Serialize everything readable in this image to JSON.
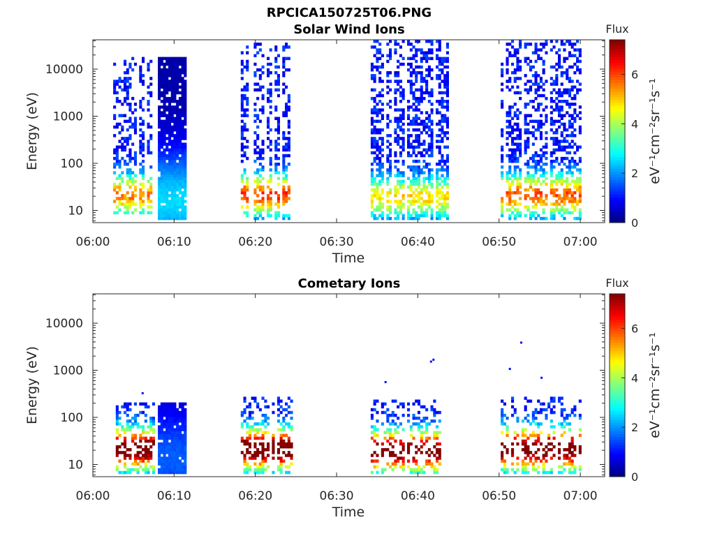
{
  "figure_title": "RPCICA150725T06.PNG",
  "colorbar": {
    "title": "Flux",
    "label": "eV⁻¹cm⁻²sr⁻¹s⁻¹",
    "range": [
      0,
      7.4
    ],
    "ticks": [
      0,
      2,
      4,
      6
    ],
    "colormap": "jet"
  },
  "chart_data": [
    {
      "type": "heatmap",
      "title": "Solar Wind Ions",
      "xlabel": "Time",
      "ylabel": "Energy (eV)",
      "yscale": "log",
      "xlim": [
        "06:00",
        "07:03"
      ],
      "ylim": [
        5.5,
        42000
      ],
      "xticks": [
        "06:00",
        "06:10",
        "06:20",
        "06:30",
        "06:40",
        "06:50",
        "07:00"
      ],
      "yticks": [
        "10",
        "100",
        "1000",
        "10000"
      ],
      "bursts": [
        {
          "start": "06:02.5",
          "end": "06:07.3",
          "emin": 8,
          "emax": 18000,
          "peak_energy": 20,
          "peak_flux": 4.5,
          "density": 0.6
        },
        {
          "start": "06:08.0",
          "end": "06:11.3",
          "emin": 6,
          "emax": 18000,
          "peak_energy": 15,
          "peak_flux": 2.2,
          "density": 0.9,
          "solid": true
        },
        {
          "start": "06:18.2",
          "end": "06:24.5",
          "emin": 6,
          "emax": 35000,
          "peak_energy": 20,
          "peak_flux": 5.0,
          "density": 0.6
        },
        {
          "start": "06:34.2",
          "end": "06:43.7",
          "emin": 6,
          "emax": 40000,
          "peak_energy": 18,
          "peak_flux": 3.8,
          "density": 0.7
        },
        {
          "start": "06:50.2",
          "end": "06:59.9",
          "emin": 6,
          "emax": 38000,
          "peak_energy": 20,
          "peak_flux": 4.8,
          "density": 0.65
        }
      ]
    },
    {
      "type": "heatmap",
      "title": "Cometary Ions",
      "xlabel": "Time",
      "ylabel": "Energy (eV)",
      "yscale": "log",
      "xlim": [
        "06:00",
        "07:03"
      ],
      "ylim": [
        5.5,
        42000
      ],
      "xticks": [
        "06:00",
        "06:10",
        "06:20",
        "06:30",
        "06:40",
        "06:50",
        "07:00"
      ],
      "yticks": [
        "10",
        "100",
        "1000",
        "10000"
      ],
      "bursts": [
        {
          "start": "06:02.5",
          "end": "06:07.6",
          "emin": 6,
          "emax": 200,
          "peak_energy": 20,
          "peak_flux": 7.0,
          "density": 0.7
        },
        {
          "start": "06:08.0",
          "end": "06:11.3",
          "emin": 6,
          "emax": 200,
          "peak_energy": 12,
          "peak_flux": 1.3,
          "density": 0.95,
          "solid": true
        },
        {
          "start": "06:18.2",
          "end": "06:24.5",
          "emin": 6,
          "emax": 250,
          "peak_energy": 20,
          "peak_flux": 7.2,
          "density": 0.6
        },
        {
          "start": "06:34.2",
          "end": "06:43.7",
          "emin": 6,
          "emax": 220,
          "peak_energy": 18,
          "peak_flux": 6.8,
          "density": 0.55
        },
        {
          "start": "06:50.2",
          "end": "06:59.9",
          "emin": 6,
          "emax": 240,
          "peak_energy": 20,
          "peak_flux": 7.0,
          "density": 0.55
        }
      ],
      "isolated_points": [
        {
          "time": "06:06.0",
          "energy": 320,
          "flux": 1.0
        },
        {
          "time": "06:35.9",
          "energy": 550,
          "flux": 1.0
        },
        {
          "time": "06:41.5",
          "energy": 1500,
          "flux": 1.0
        },
        {
          "time": "06:41.8",
          "energy": 1650,
          "flux": 1.0
        },
        {
          "time": "06:51.2",
          "energy": 1050,
          "flux": 1.0
        },
        {
          "time": "06:52.6",
          "energy": 3800,
          "flux": 1.0
        },
        {
          "time": "06:55.1",
          "energy": 680,
          "flux": 1.0
        }
      ]
    }
  ]
}
